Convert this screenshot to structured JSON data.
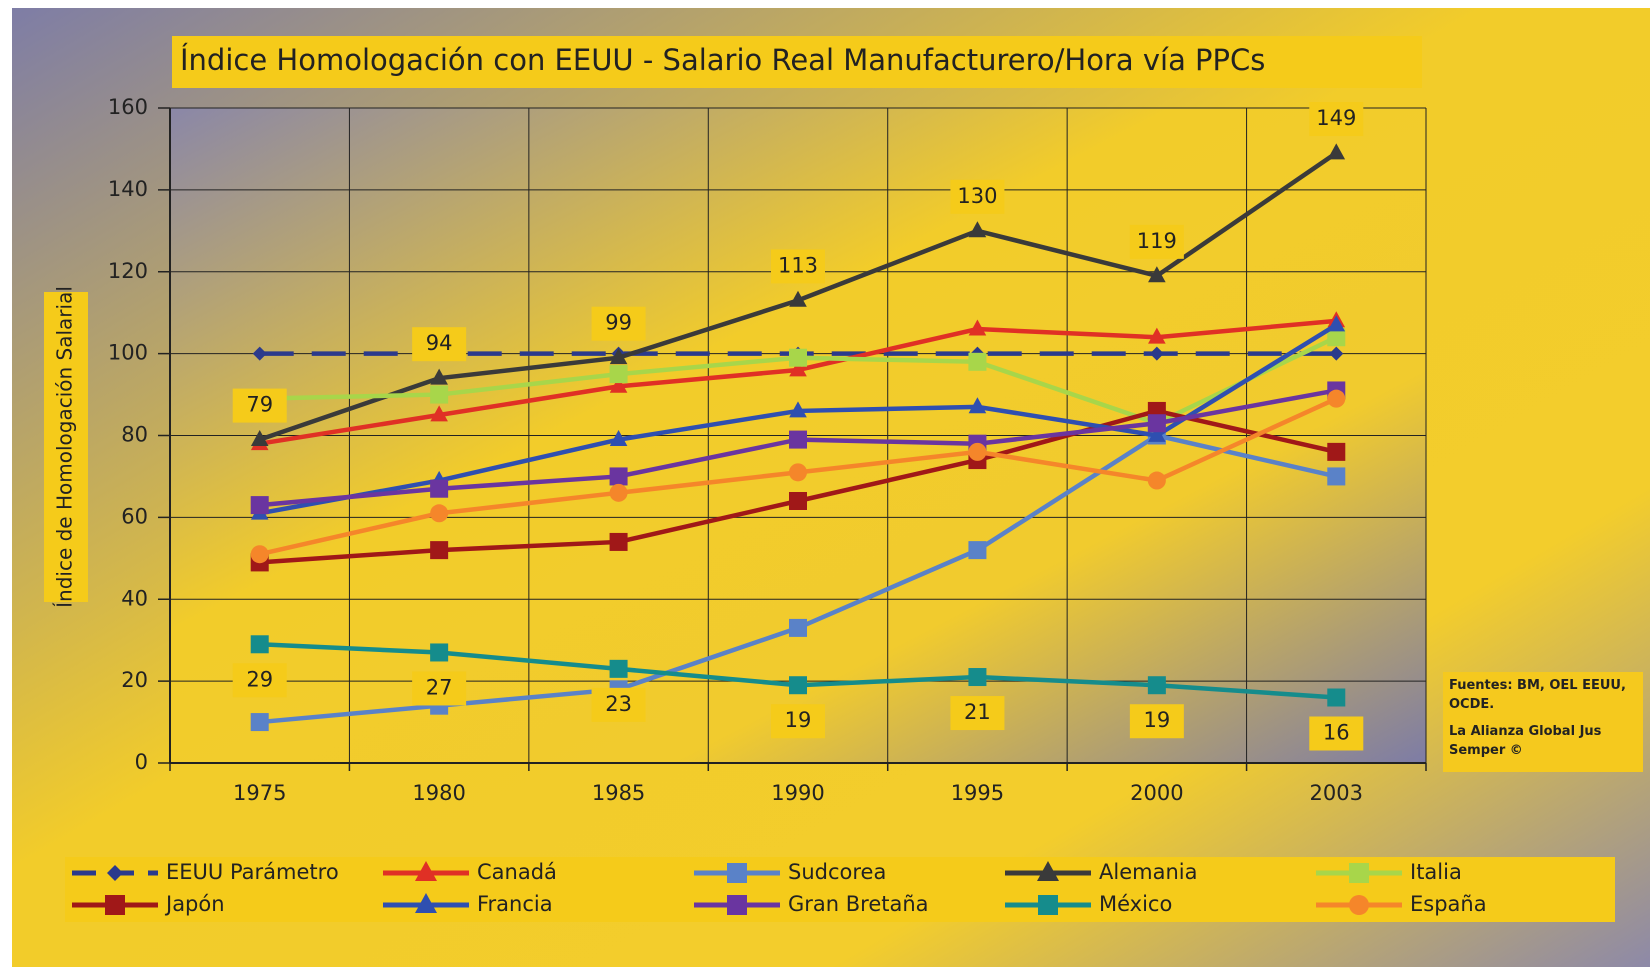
{
  "chart_data": {
    "type": "line",
    "title": "Índice Homologación con EEUU - Salario Real Manufacturero/Hora vía PPCs",
    "y_label": "Índice de Homologación Salarial",
    "annotations": [
      "Fuentes: BM, OEL EEUU, OCDE.",
      "La Alianza Global Jus Semper ©"
    ],
    "categories": [
      "1975",
      "1980",
      "1985",
      "1990",
      "1995",
      "2000",
      "2003"
    ],
    "ylim": [
      0,
      160
    ],
    "yticks": [
      0,
      20,
      40,
      60,
      80,
      100,
      120,
      140,
      160
    ],
    "grid": true,
    "legend": "bottom",
    "series": [
      {
        "name": "EEUU Parámetro",
        "color": "#2b3a8c",
        "marker": "diamond",
        "dash": true,
        "values": [
          100,
          100,
          100,
          100,
          100,
          100,
          100
        ]
      },
      {
        "name": "Canadá",
        "color": "#e03025",
        "marker": "triangle",
        "values": [
          78,
          85,
          92,
          96,
          106,
          104,
          108
        ]
      },
      {
        "name": "Sudcorea",
        "color": "#5a82c8",
        "marker": "square",
        "values": [
          10,
          14,
          18,
          33,
          52,
          80,
          70
        ]
      },
      {
        "name": "Alemania",
        "color": "#3a3a3a",
        "marker": "triangle",
        "show_labels": true,
        "label_side": "above",
        "values": [
          79,
          94,
          99,
          113,
          130,
          119,
          149
        ]
      },
      {
        "name": "Italia",
        "color": "#a8d64a",
        "marker": "square",
        "values": [
          89,
          90,
          95,
          99,
          98,
          83,
          104
        ]
      },
      {
        "name": "Japón",
        "color": "#a01818",
        "marker": "square",
        "values": [
          49,
          52,
          54,
          64,
          74,
          86,
          76
        ]
      },
      {
        "name": "Francia",
        "color": "#2f4fb0",
        "marker": "triangle",
        "values": [
          61,
          69,
          79,
          86,
          87,
          80,
          107
        ]
      },
      {
        "name": "Gran Bretaña",
        "color": "#6a35a0",
        "marker": "square",
        "values": [
          63,
          67,
          70,
          79,
          78,
          83,
          91
        ]
      },
      {
        "name": "México",
        "color": "#158c8c",
        "marker": "square",
        "show_labels": true,
        "label_side": "below",
        "values": [
          29,
          27,
          23,
          19,
          21,
          19,
          16
        ]
      },
      {
        "name": "España",
        "color": "#f5862a",
        "marker": "circle",
        "values": [
          51,
          61,
          66,
          71,
          76,
          69,
          89
        ]
      }
    ]
  }
}
